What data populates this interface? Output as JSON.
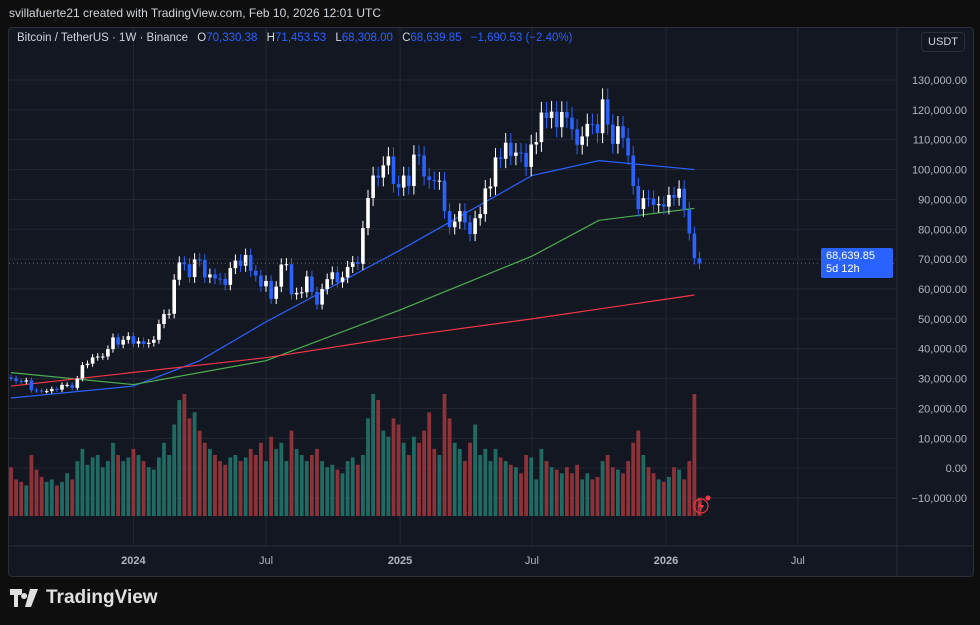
{
  "attribution": "svillafuerte21 created with TradingView.com, Feb 10, 2026 12:01 UTC",
  "legend": {
    "symbol": "Bitcoin / TetherUS · 1W · Binance",
    "o_label": "O",
    "o": "70,330.38",
    "h_label": "H",
    "h": "71,453.53",
    "l_label": "L",
    "l": "68,308.00",
    "c_label": "C",
    "c": "68,639.85",
    "change": "−1,690.53 (−2.40%)"
  },
  "currency": "USDT",
  "last_price": "68,639.85",
  "countdown": "5d 12h",
  "logo": "TradingView",
  "colors": {
    "up": "#ffffff",
    "down": "#2962ff",
    "vol_up": "#1f6b63",
    "vol_down": "#8c3238",
    "ma_blue": "#2962ff",
    "ma_green": "#4caf50",
    "ma_red": "#f23645",
    "grid": "#232834"
  },
  "chart_data": {
    "type": "candlestick",
    "interval": "1W",
    "x_start": "2023-07-17",
    "closes": [
      30.1,
      29.2,
      29.0,
      29.4,
      26.1,
      26.0,
      25.8,
      25.8,
      26.5,
      26.3,
      27.9,
      27.9,
      26.9,
      30.0,
      34.5,
      35.0,
      37.1,
      37.4,
      37.4,
      39.9,
      43.8,
      41.4,
      43.0,
      44.2,
      41.7,
      42.5,
      41.6,
      42.0,
      43.0,
      48.3,
      51.6,
      51.7,
      63.1,
      68.9,
      68.3,
      64.0,
      69.9,
      69.7,
      63.9,
      64.9,
      63.5,
      63.4,
      61.4,
      67.0,
      69.5,
      67.8,
      71.4,
      66.1,
      64.5,
      60.9,
      62.7,
      56.7,
      60.8,
      68.2,
      68.3,
      58.2,
      58.7,
      58.9,
      64.2,
      59.0,
      54.8,
      60.0,
      63.3,
      65.6,
      62.3,
      63.9,
      67.4,
      69.0,
      68.4,
      80.4,
      90.5,
      98.0,
      97.3,
      101.4,
      104.4,
      95.2,
      94.0,
      98.0,
      94.5,
      105.0,
      104.7,
      97.7,
      96.5,
      96.1,
      96.3,
      86.1,
      80.7,
      82.6,
      86.1,
      82.3,
      78.4,
      83.7,
      85.1,
      93.7,
      94.3,
      104.1,
      103.6,
      109.0,
      104.6,
      105.7,
      105.6,
      100.9,
      108.4,
      109.2,
      119.1,
      117.3,
      119.4,
      114.2,
      119.3,
      117.4,
      113.5,
      108.3,
      111.1,
      115.3,
      115.2,
      112.2,
      123.5,
      115.1,
      108.6,
      114.5,
      110.6,
      104.7,
      94.5,
      86.8,
      90.4,
      90.3,
      88.2,
      88.4,
      87.6,
      91.5,
      90.6,
      93.6,
      86.6,
      78.6,
      70.33,
      68.64
    ],
    "close_unit": "thousand USDT",
    "volume_relative": [
      40,
      30,
      28,
      25,
      50,
      38,
      32,
      28,
      30,
      25,
      28,
      35,
      30,
      45,
      55,
      42,
      48,
      50,
      40,
      45,
      60,
      50,
      45,
      48,
      55,
      50,
      45,
      40,
      38,
      48,
      60,
      50,
      75,
      95,
      100,
      80,
      85,
      70,
      60,
      55,
      50,
      45,
      42,
      48,
      50,
      45,
      48,
      55,
      50,
      60,
      45,
      65,
      55,
      60,
      45,
      70,
      55,
      50,
      45,
      50,
      55,
      45,
      40,
      42,
      38,
      35,
      45,
      48,
      42,
      50,
      80,
      100,
      95,
      70,
      65,
      80,
      75,
      60,
      50,
      65,
      60,
      70,
      85,
      55,
      50,
      100,
      80,
      60,
      55,
      45,
      60,
      75,
      50,
      55,
      45,
      55,
      48,
      45,
      42,
      40,
      35,
      50,
      48,
      30,
      55,
      45,
      40,
      38,
      35,
      40,
      35,
      42,
      30,
      35,
      30,
      32,
      45,
      50,
      40,
      38,
      35,
      45,
      60,
      70,
      50,
      40,
      35,
      30,
      28,
      32,
      40,
      38,
      30,
      45,
      100,
      15
    ],
    "moving_averages": [
      {
        "color": "blue",
        "points": [
          [
            "2023-07-17",
            23500
          ],
          [
            "2024-01-01",
            27500
          ],
          [
            "2024-04-01",
            36000
          ],
          [
            "2024-07-01",
            49000
          ],
          [
            "2025-01-01",
            73000
          ],
          [
            "2025-07-01",
            98000
          ],
          [
            "2025-10-01",
            103000
          ],
          [
            "2026-02-09",
            100000
          ]
        ]
      },
      {
        "color": "green",
        "points": [
          [
            "2023-07-17",
            32000
          ],
          [
            "2024-01-01",
            28000
          ],
          [
            "2024-07-01",
            36000
          ],
          [
            "2025-01-01",
            53000
          ],
          [
            "2025-07-01",
            71000
          ],
          [
            "2025-10-01",
            83000
          ],
          [
            "2026-02-09",
            87000
          ]
        ]
      },
      {
        "color": "red",
        "points": [
          [
            "2023-07-17",
            27500
          ],
          [
            "2024-07-01",
            37000
          ],
          [
            "2025-01-01",
            44000
          ],
          [
            "2025-07-01",
            50000
          ],
          [
            "2026-02-09",
            58000
          ]
        ]
      }
    ],
    "y_ticks": [
      "130,000.00",
      "120,000.00",
      "110,000.00",
      "100,000.00",
      "90,000.00",
      "80,000.00",
      "70,000.00",
      "60,000.00",
      "50,000.00",
      "40,000.00",
      "30,000.00",
      "20,000.00",
      "10,000.00",
      "0.00",
      "−10,000.00"
    ],
    "y_range": [
      -10000,
      130000
    ],
    "x_ticks": [
      {
        "label": "2024",
        "date": "2024-01-01"
      },
      {
        "label": "Jul",
        "date": "2024-07-01"
      },
      {
        "label": "2025",
        "date": "2025-01-01"
      },
      {
        "label": "Jul",
        "date": "2025-07-01"
      },
      {
        "label": "2026",
        "date": "2026-01-01"
      },
      {
        "label": "Jul",
        "date": "2026-07-01"
      }
    ]
  }
}
